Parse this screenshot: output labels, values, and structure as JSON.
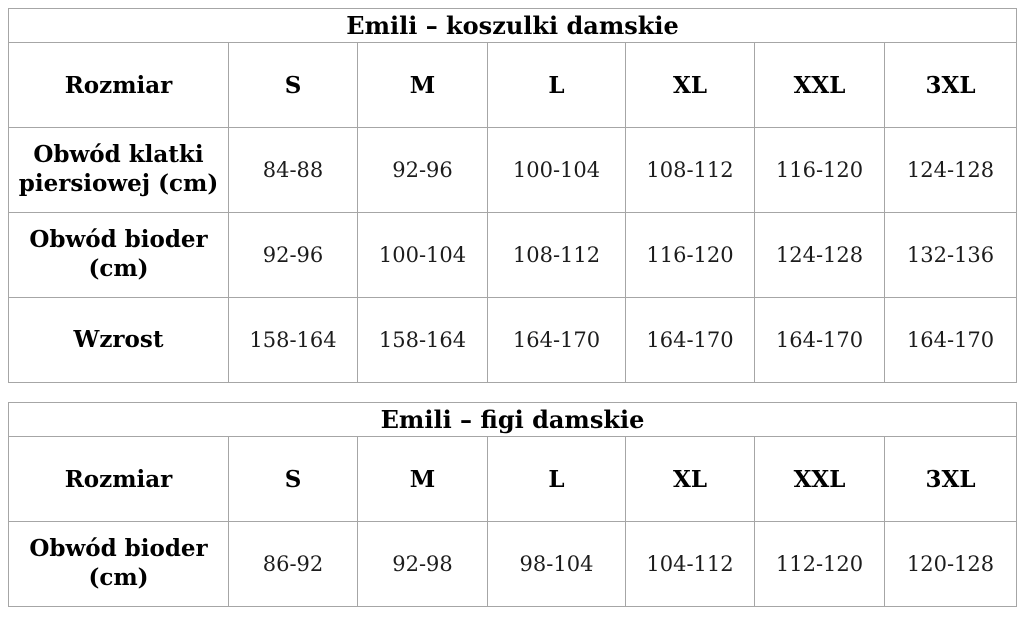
{
  "page": {
    "background_color": "#ffffff",
    "border_color": "#a6a6a6",
    "text_color": "#000000"
  },
  "tables": [
    {
      "title": "Emili – koszulki damskie",
      "columns": [
        "Rozmiar",
        "S",
        "M",
        "L",
        "XL",
        "XXL",
        "3XL"
      ],
      "rows": [
        {
          "label": "Obwód klatki piersiowej (cm)",
          "values": [
            "84-88",
            "92-96",
            "100-104",
            "108-112",
            "116-120",
            "124-128"
          ]
        },
        {
          "label": "Obwód bioder (cm)",
          "values": [
            "92-96",
            "100-104",
            "108-112",
            "116-120",
            "124-128",
            "132-136"
          ]
        },
        {
          "label": "Wzrost",
          "values": [
            "158-164",
            "158-164",
            "164-170",
            "164-170",
            "164-170",
            "164-170"
          ]
        }
      ]
    },
    {
      "title": "Emili – figi damskie",
      "columns": [
        "Rozmiar",
        "S",
        "M",
        "L",
        "XL",
        "XXL",
        "3XL"
      ],
      "rows": [
        {
          "label": "Obwód bioder (cm)",
          "values": [
            "86-92",
            "92-98",
            "98-104",
            "104-112",
            "112-120",
            "120-128"
          ]
        }
      ]
    }
  ]
}
